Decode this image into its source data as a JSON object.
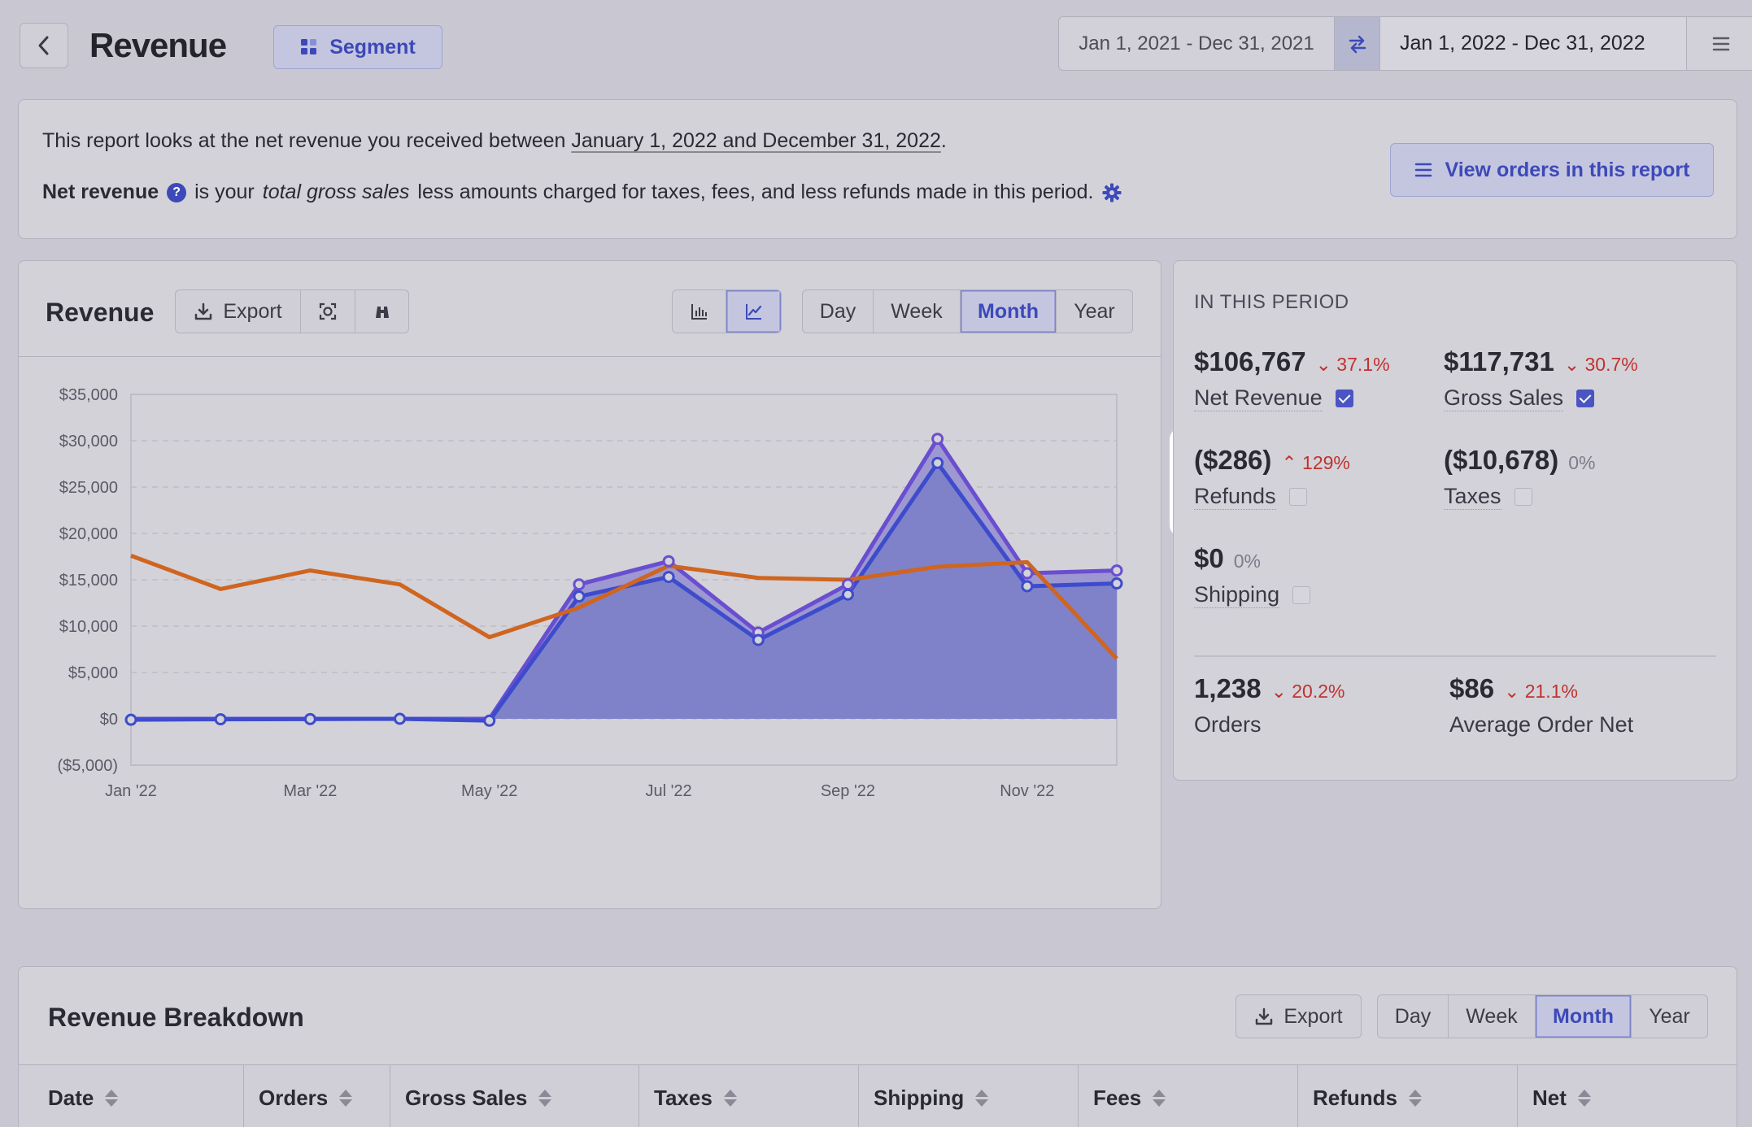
{
  "header": {
    "back_label": "Back",
    "title": "Revenue",
    "segment_label": "Segment",
    "compare_range": "Jan 1, 2021 - Dec 31, 2021",
    "current_range": "Jan 1, 2022 - Dec 31, 2022"
  },
  "info": {
    "line1_prefix": "This report looks at the net revenue you received between ",
    "line1_dates": "January 1, 2022 and December 31, 2022",
    "line1_suffix": ".",
    "line2_term": "Net revenue",
    "line2_mid": "is your",
    "line2_em": "total gross sales",
    "line2_rest": "less amounts charged for taxes, fees, and less refunds made in this period.",
    "view_orders_label": "View orders in this report"
  },
  "chart_panel": {
    "title": "Revenue",
    "export_label": "Export",
    "periods": [
      "Day",
      "Week",
      "Month",
      "Year"
    ],
    "active_period": "Month"
  },
  "chart_data": {
    "type": "area",
    "x": [
      "Jan '22",
      "Feb '22",
      "Mar '22",
      "Apr '22",
      "May '22",
      "Jun '22",
      "Jul '22",
      "Aug '22",
      "Sep '22",
      "Oct '22",
      "Nov '22",
      "Dec '22"
    ],
    "x_tick_labels": [
      "Jan '22",
      "Mar '22",
      "May '22",
      "Jul '22",
      "Sep '22",
      "Nov '22"
    ],
    "y_tick_labels": [
      "$35,000",
      "$30,000",
      "$25,000",
      "$20,000",
      "$15,000",
      "$10,000",
      "$5,000",
      "$0",
      "($5,000)"
    ],
    "ylim": [
      -5000,
      35000
    ],
    "grid": true,
    "series": [
      {
        "values": [
          0,
          0,
          0,
          0,
          0,
          14500,
          17000,
          9300,
          14500,
          30200,
          15700,
          16000
        ],
        "color": "#6a4ed0"
      },
      {
        "values": [
          -100,
          -50,
          -30,
          0,
          -200,
          13200,
          15300,
          8500,
          13400,
          27600,
          14300,
          14600
        ],
        "color": "#3d4ccc"
      },
      {
        "values": [
          17600,
          14000,
          16000,
          14500,
          8800,
          12000,
          16500,
          15200,
          15000,
          16400,
          16900,
          6500
        ],
        "color": "#cf651f"
      }
    ]
  },
  "summary": {
    "period_label": "IN THIS PERIOD",
    "metrics": [
      {
        "value": "$106,767",
        "change": "37.1%",
        "dir": "down",
        "label": "Net Revenue"
      },
      {
        "value": "$117,731",
        "change": "30.7%",
        "dir": "down",
        "label": "Gross Sales"
      },
      {
        "value": "($286)",
        "change": "129%",
        "dir": "up",
        "label": "Refunds"
      },
      {
        "value": "($10,678)",
        "change": "0%",
        "dir": "none",
        "label": "Taxes"
      },
      {
        "value": "$0",
        "change": "0%",
        "dir": "none",
        "label": "Shipping"
      },
      {
        "value": "1,238",
        "change": "20.2%",
        "dir": "down",
        "label": "Orders"
      },
      {
        "value": "$86",
        "change": "21.1%",
        "dir": "down",
        "label": "Average Order Net"
      }
    ]
  },
  "breakdown": {
    "title": "Revenue Breakdown",
    "export_label": "Export",
    "periods": [
      "Day",
      "Week",
      "Month",
      "Year"
    ],
    "active_period": "Month",
    "columns": [
      "Date",
      "Orders",
      "Gross Sales",
      "Taxes",
      "Shipping",
      "Fees",
      "Refunds",
      "Net"
    ]
  }
}
